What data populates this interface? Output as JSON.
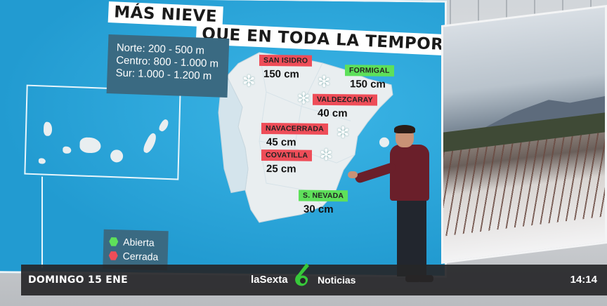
{
  "title": {
    "line1": "MÁS NIEVE",
    "line2": "QUE EN TODA LA TEMPORADA"
  },
  "altitudes": [
    "Norte: 200 - 500 m",
    "Centro: 800 - 1.000 m",
    "Sur: 1.000 - 1.200 m"
  ],
  "stations": [
    {
      "name": "SAN ISIDRO",
      "snow": "150 cm",
      "status": "closed"
    },
    {
      "name": "FORMIGAL",
      "snow": "150 cm",
      "status": "open"
    },
    {
      "name": "VALDEZCARAY",
      "snow": "40 cm",
      "status": "closed"
    },
    {
      "name": "NAVACERRADA",
      "snow": "45 cm",
      "status": "closed"
    },
    {
      "name": "COVATILLA",
      "snow": "25 cm",
      "status": "closed"
    },
    {
      "name": "S. NEVADA",
      "snow": "30 cm",
      "status": "open"
    }
  ],
  "legend": {
    "open": "Abierta",
    "closed": "Cerrada"
  },
  "colors": {
    "open": "#5ee05a",
    "closed": "#ee4d58",
    "sea": "#28a6da",
    "land": "#e9eef0"
  },
  "ticker": {
    "date": "DOMINGO 15 ENE",
    "brand1": "laSexta",
    "brand2": "Noticias",
    "time": "14:14"
  }
}
